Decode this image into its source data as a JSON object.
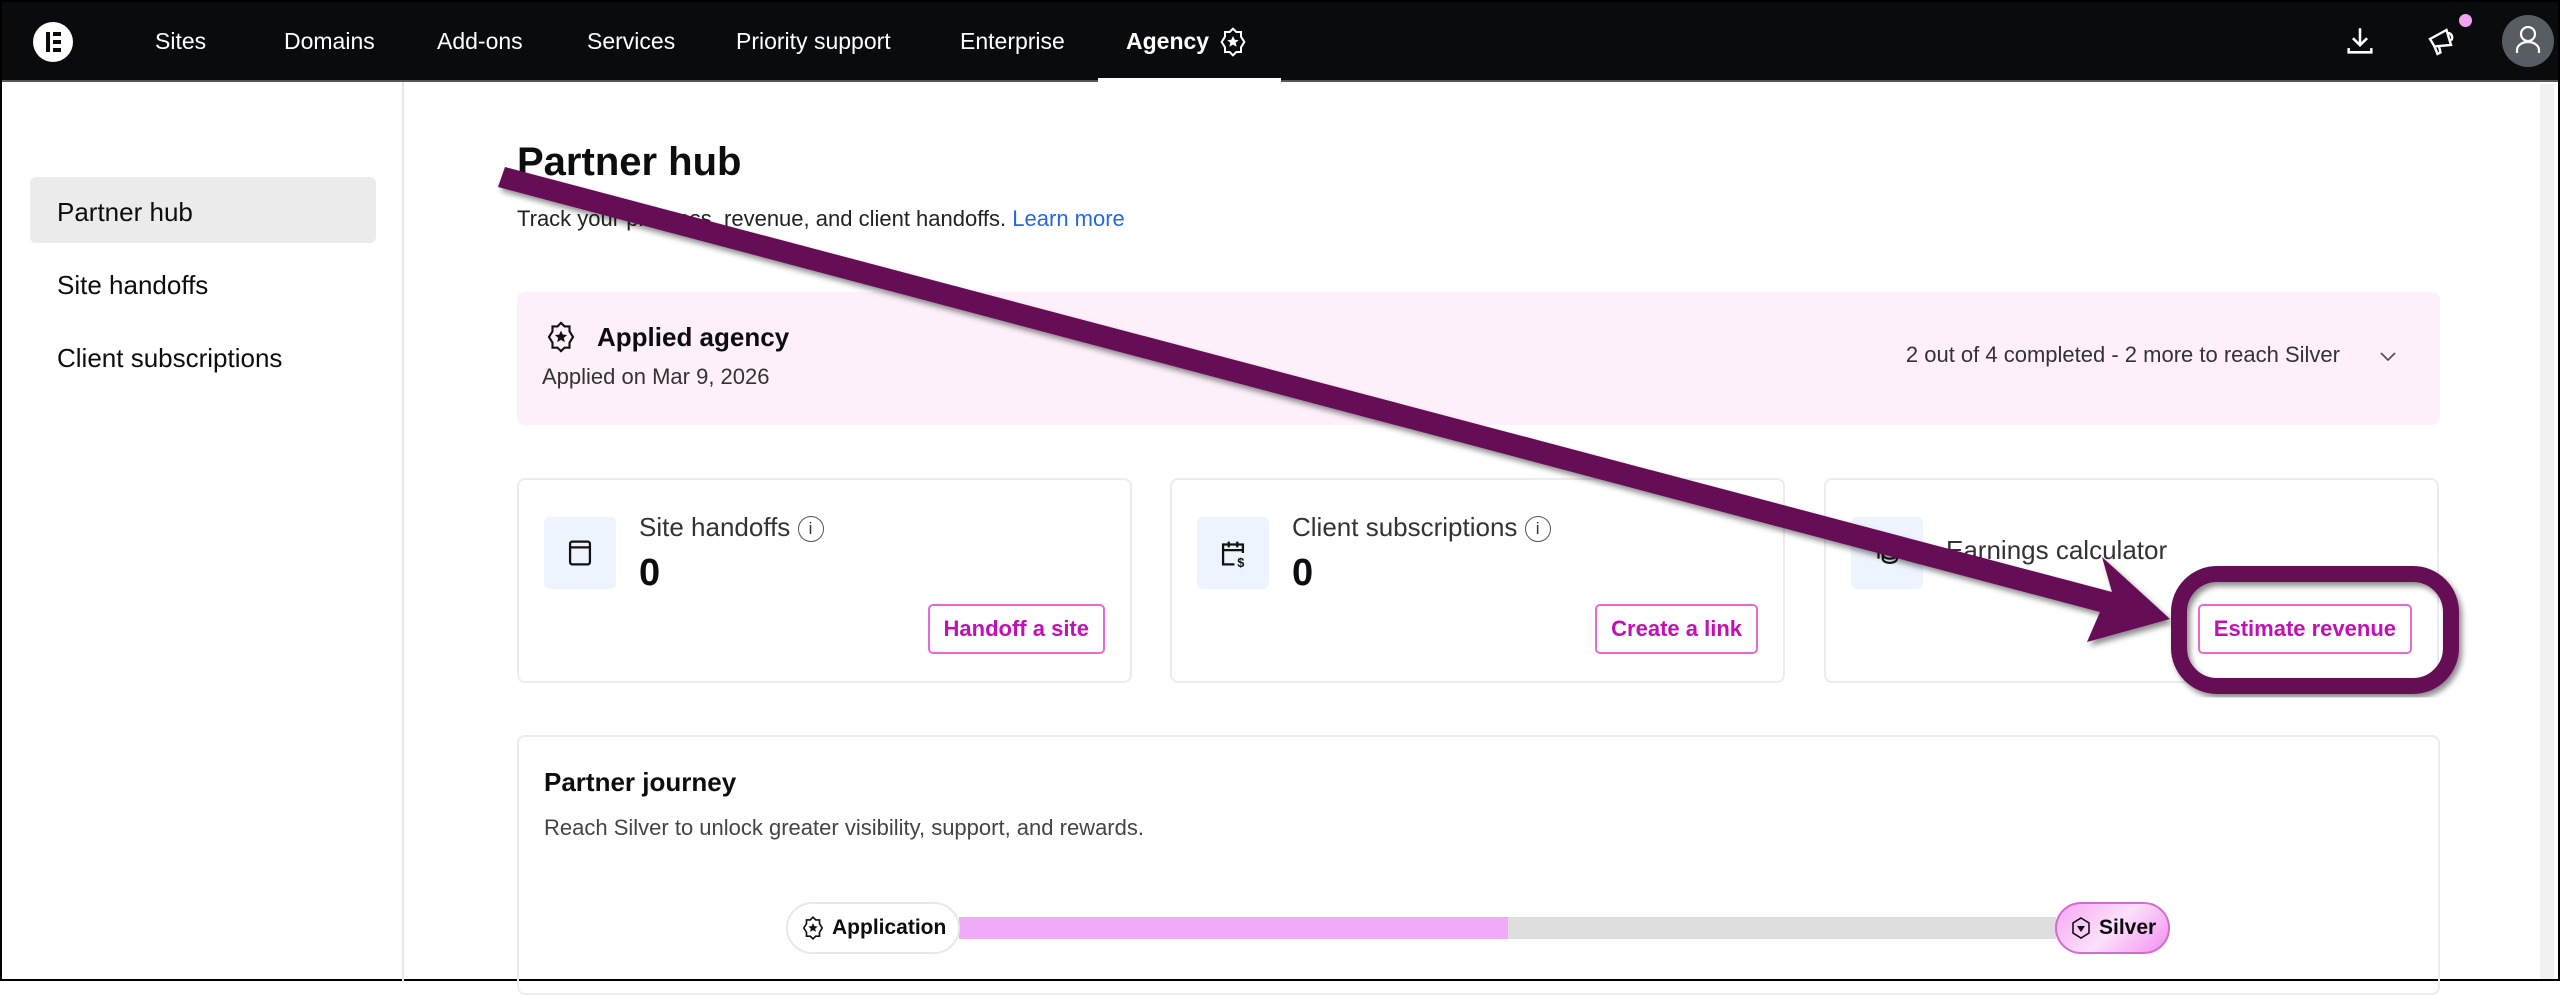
{
  "nav": {
    "items": [
      "Sites",
      "Domains",
      "Add-ons",
      "Services",
      "Priority support",
      "Enterprise",
      "Agency"
    ],
    "active": "Agency",
    "icons": [
      "download-icon",
      "megaphone-icon",
      "user-avatar-icon"
    ],
    "notification_dot_color": "#f0a3f0"
  },
  "sidebar": {
    "items": [
      "Partner hub",
      "Site handoffs",
      "Client subscriptions"
    ],
    "active": "Partner hub"
  },
  "page": {
    "title": "Partner hub",
    "subtitle": "Track your progress, revenue, and client handoffs.",
    "learn_more": "Learn more"
  },
  "banner": {
    "title": "Applied agency",
    "date": "Applied on Mar 9, 2026",
    "progress": "2 out of 4 completed - 2 more to reach Silver"
  },
  "cards": [
    {
      "label": "Site handoffs",
      "value": "0",
      "button": "Handoff a site",
      "icon": "browser-window-icon"
    },
    {
      "label": "Client subscriptions",
      "value": "0",
      "button": "Create a link",
      "icon": "calendar-dollar-icon"
    },
    {
      "label": "Earnings calculator",
      "button": "Estimate revenue",
      "icon": "coins-icon"
    }
  ],
  "journey": {
    "title": "Partner journey",
    "description": "Reach Silver to unlock greater visibility, support, and rewards.",
    "start": "Application",
    "end": "Silver",
    "progress_fraction": 0.5
  },
  "colors": {
    "accent": "#c40fb7",
    "annotation": "#650a55",
    "banner_bg": "#fdf0fa"
  }
}
